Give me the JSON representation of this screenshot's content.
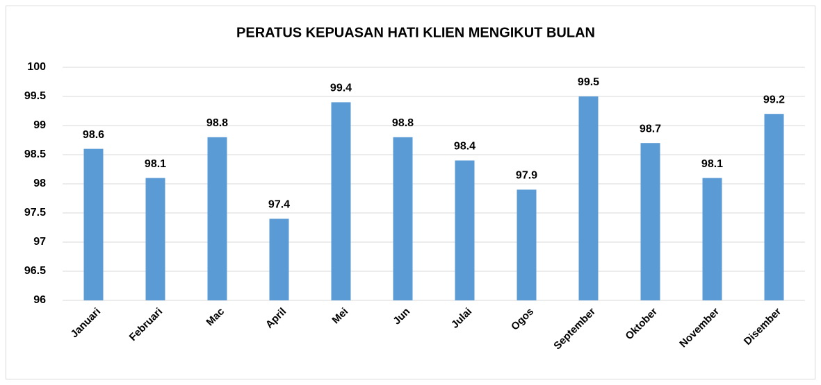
{
  "chart_data": {
    "type": "bar",
    "title": "PERATUS KEPUASAN HATI KLIEN MENGIKUT BULAN",
    "categories": [
      "Januari",
      "Februari",
      "Mac",
      "April",
      "Mei",
      "Jun",
      "Julai",
      "Ogos",
      "September",
      "Oktober",
      "November",
      "Disember"
    ],
    "values": [
      98.6,
      98.1,
      98.8,
      97.4,
      99.4,
      98.8,
      98.4,
      97.9,
      99.5,
      98.7,
      98.1,
      99.2
    ],
    "color": "#5b9bd5",
    "ylim": [
      96,
      100
    ],
    "yticks": [
      96,
      96.5,
      97,
      97.5,
      98,
      98.5,
      99,
      99.5,
      100
    ],
    "grid": true
  }
}
